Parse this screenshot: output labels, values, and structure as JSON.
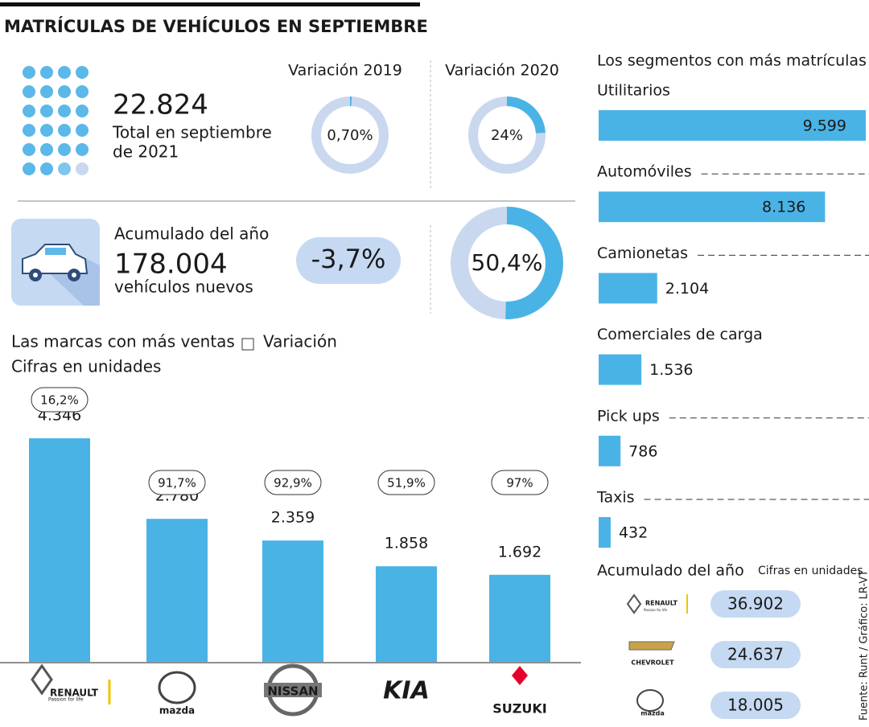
{
  "title": "MATRÍCULAS DE VEHÍCULOS EN SEPTIEMBRE",
  "total": {
    "value": "22.824",
    "label": [
      "Total en septiembre",
      "de 2021"
    ]
  },
  "accumulated": {
    "label": "Acumulado del año",
    "value": "178.004",
    "sublabel": "vehículos nuevos",
    "change": "-3,7%"
  },
  "renault_tagline": "Passion for life",
  "chart_data": [
    {
      "type": "donut",
      "title": "Variación 2019",
      "values": [
        0.7
      ],
      "value_labels": [
        "0,70%"
      ],
      "color": "#4ab3e6"
    },
    {
      "type": "donut",
      "title": "Variación 2020",
      "values": [
        24
      ],
      "value_labels": [
        "24%"
      ],
      "color": "#4ab3e6"
    },
    {
      "type": "donut",
      "values": [
        50.4
      ],
      "value_labels": [
        "50,4%"
      ],
      "color": "#4ab3e6"
    },
    {
      "type": "bar",
      "title": "Las marcas con más ventas",
      "subtitle": "Cifras en unidades",
      "categories": [
        "RENAULT",
        "mazda",
        "NISSAN",
        "KIA",
        "SUZUKI"
      ],
      "values": [
        4346,
        2780,
        2359,
        1858,
        1692
      ],
      "value_labels": [
        "4.346",
        "2.780",
        "2.359",
        "1.858",
        "1.692"
      ],
      "variation": {
        "name": "Variación",
        "values": [
          16.2,
          91.7,
          92.9,
          51.9,
          97
        ],
        "value_labels": [
          "16,2%",
          "91,7%",
          "92,9%",
          "51,9%",
          "97%"
        ]
      },
      "color": "#4ab3e6"
    },
    {
      "type": "hbar",
      "title": "Los segmentos con más matrículas",
      "categories": [
        "Utilitarios",
        "Automóviles",
        "Camionetas",
        "Comerciales de carga",
        "Pick ups",
        "Taxis"
      ],
      "values": [
        9599,
        8136,
        2104,
        1536,
        786,
        432
      ],
      "value_labels": [
        "9.599",
        "8.136",
        "2.104",
        "1.536",
        "786",
        "432"
      ],
      "color": "#4ab3e6"
    }
  ],
  "accumulated_brands": {
    "title": "Acumulado del año",
    "subtitle": "Cifras en unidades",
    "rows": [
      {
        "brand": "RENAULT",
        "value": "36.902"
      },
      {
        "brand": "CHEVROLET",
        "value": "24.637"
      },
      {
        "brand": "mazda",
        "value": "18.005"
      }
    ]
  },
  "source": "Fuente: Runt / Gráfico: LR-VT"
}
